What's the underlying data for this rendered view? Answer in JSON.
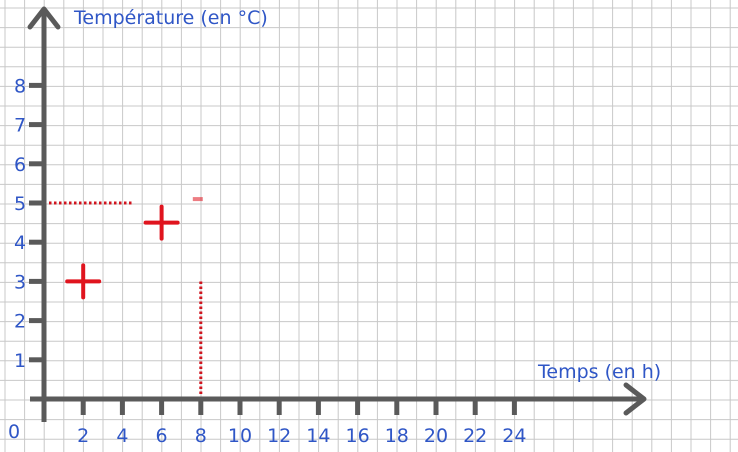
{
  "colors": {
    "grid": "#c8c8c8",
    "axis": "#5a5a5a",
    "label": "#2f56c6",
    "marker": "#e0141e",
    "dotted": "#d0141e"
  },
  "chart_data": {
    "type": "scatter",
    "title": "",
    "xlabel": "Temps (en h)",
    "ylabel": "Température  (en °C)",
    "origin_label": "0",
    "xlim": [
      0,
      24
    ],
    "ylim": [
      0,
      8
    ],
    "x_ticks": [
      2,
      4,
      6,
      8,
      10,
      12,
      14,
      16,
      18,
      20,
      22,
      24
    ],
    "y_ticks": [
      1,
      2,
      3,
      4,
      5,
      6,
      7,
      8
    ],
    "grid": true,
    "series": [
      {
        "marker": "plus",
        "points": [
          {
            "x": 2,
            "y": 3
          },
          {
            "x": 6,
            "y": 4.5
          }
        ]
      }
    ],
    "annotations": [
      {
        "type": "dotted-horizontal",
        "y": 5,
        "x_from": 0,
        "x_to": 4.5
      },
      {
        "type": "dotted-vertical",
        "x": 8,
        "y_from": 0,
        "y_to": 3
      },
      {
        "type": "dash",
        "x": 8,
        "y": 5.1
      }
    ]
  }
}
